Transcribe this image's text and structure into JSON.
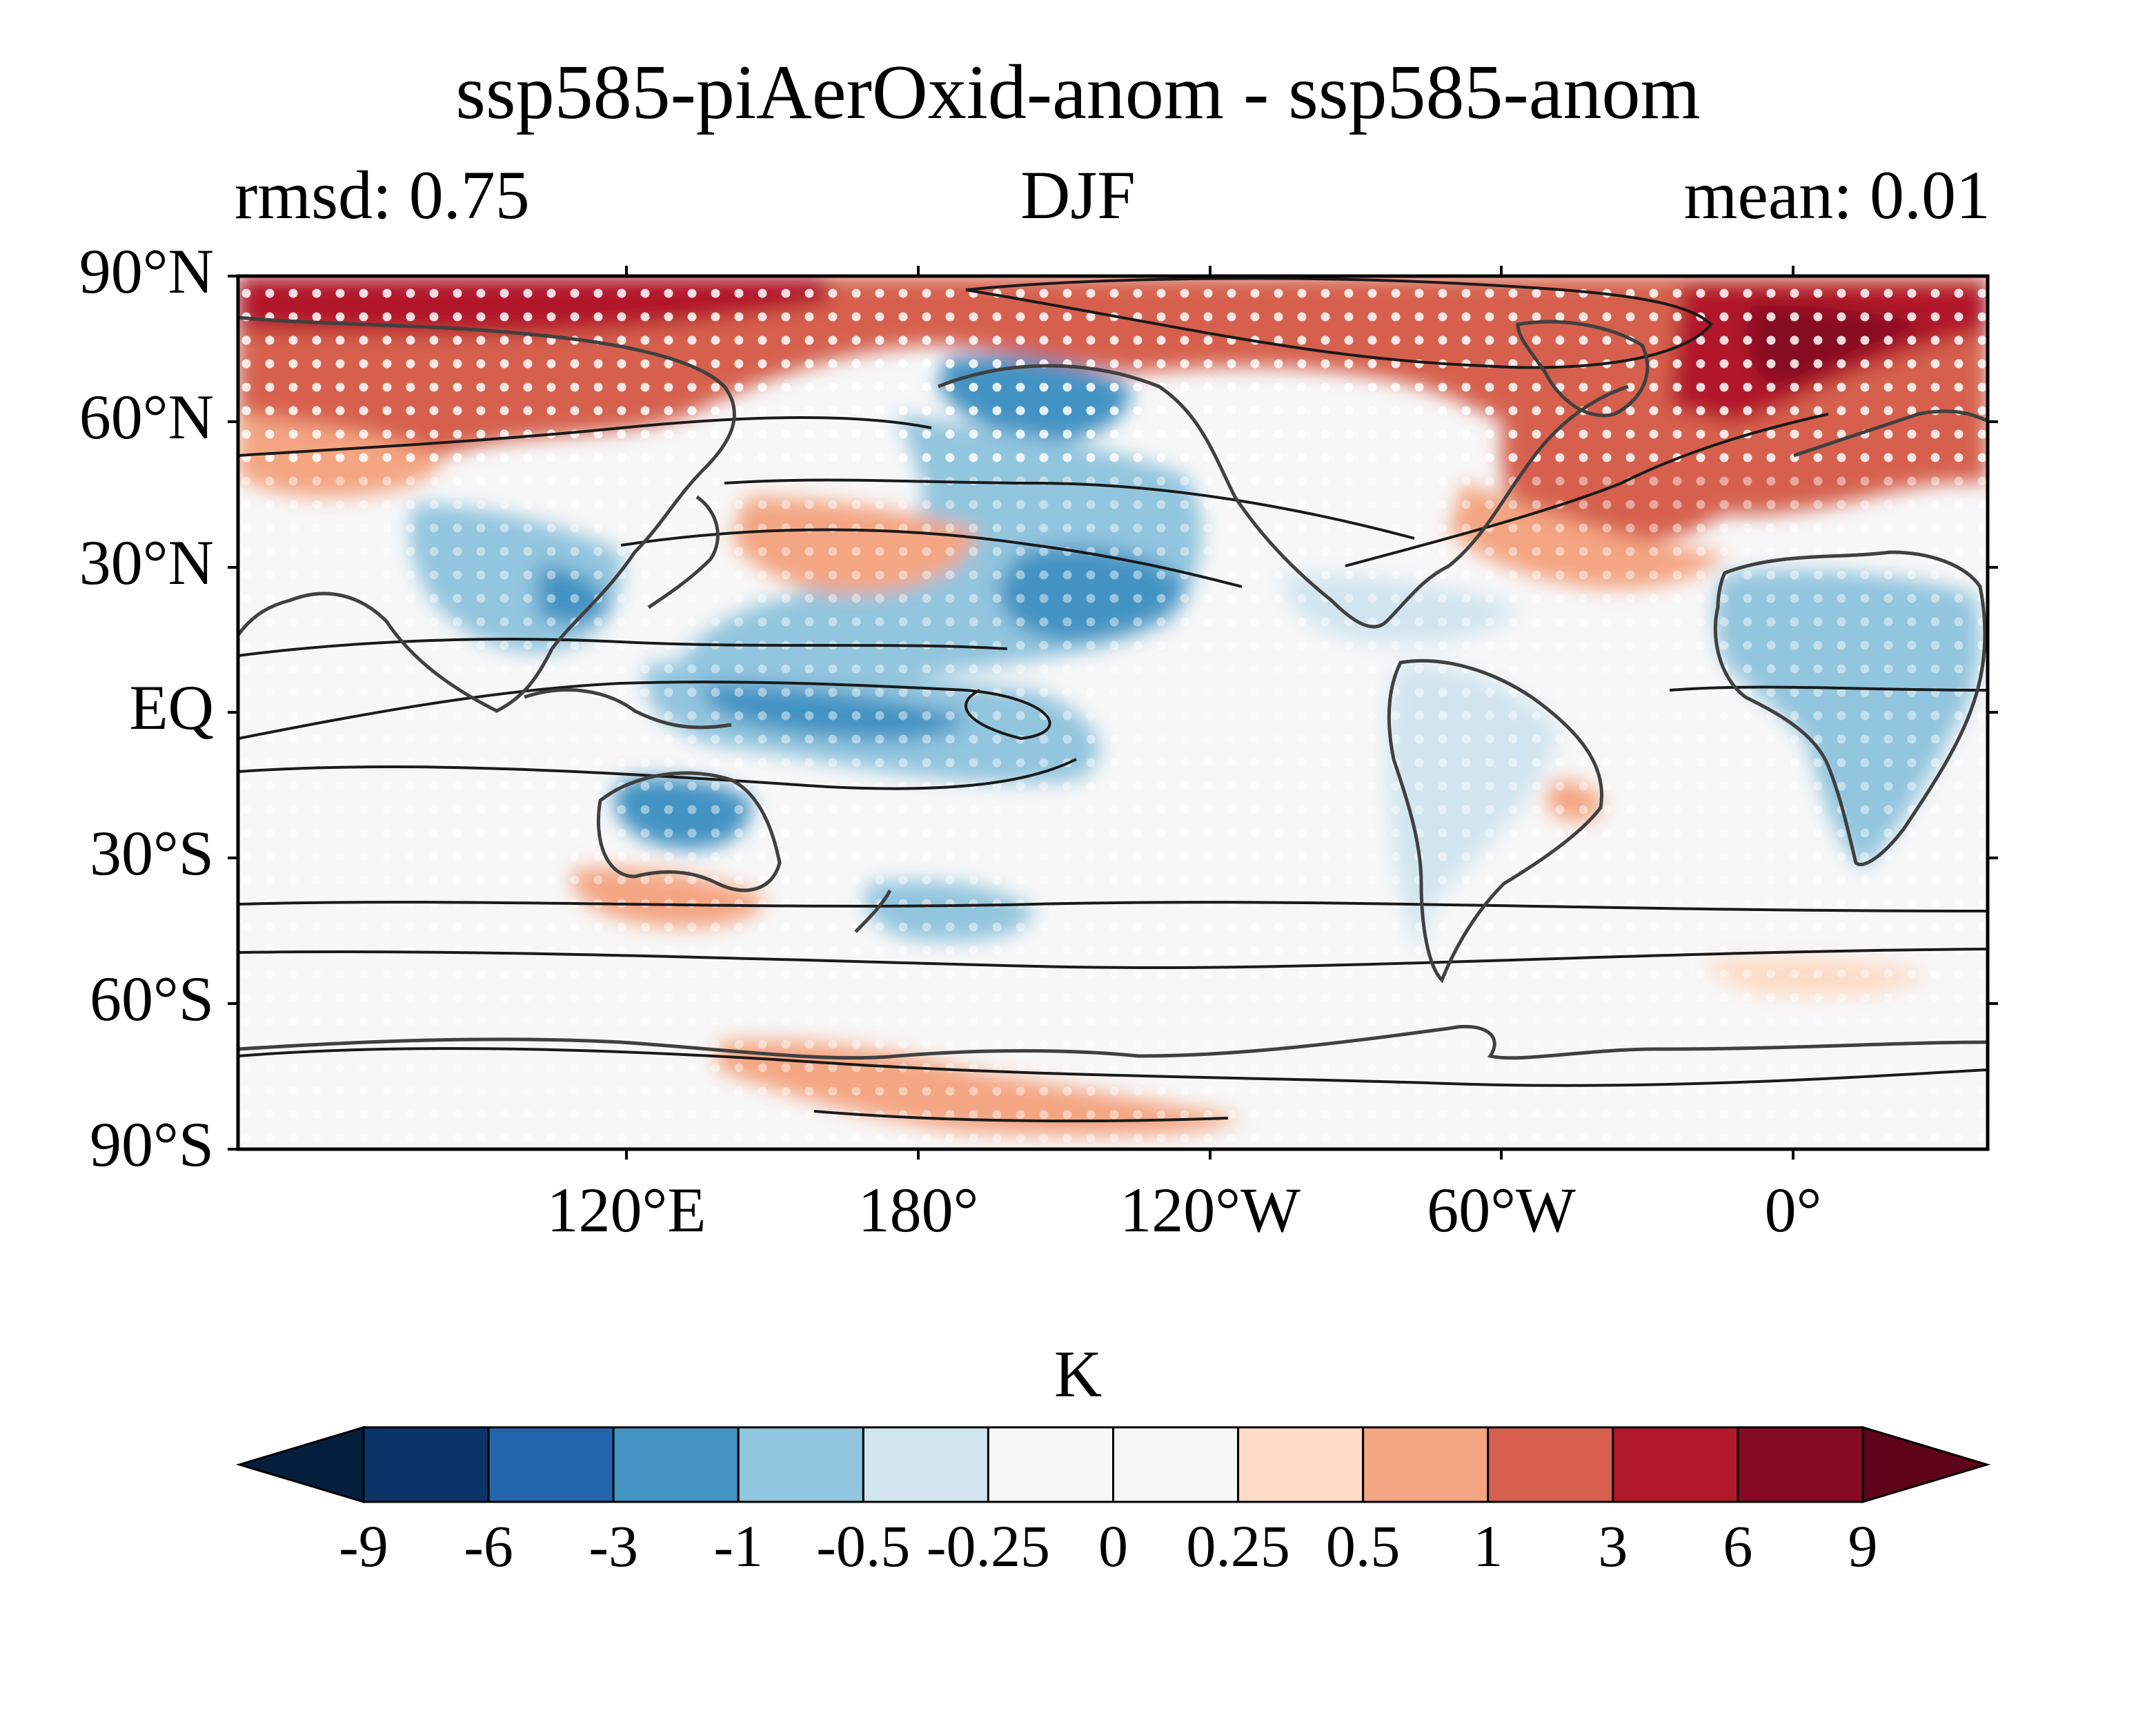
{
  "chart_data": {
    "type": "heatmap",
    "title": "ssp585-piAerOxid-anom - ssp585-anom",
    "subtitle_left": "rmsd: 0.75",
    "subtitle_center": "DJF",
    "subtitle_right": "mean: 0.01",
    "projection": "equirectangular, central longitude 150°E",
    "lon_range": [
      30,
      390
    ],
    "lat_range": [
      -90,
      90
    ],
    "y_ticks": [
      {
        "lat": 90,
        "label": "90°N"
      },
      {
        "lat": 60,
        "label": "60°N"
      },
      {
        "lat": 30,
        "label": "30°N"
      },
      {
        "lat": 0,
        "label": "EQ"
      },
      {
        "lat": -30,
        "label": "30°S"
      },
      {
        "lat": -60,
        "label": "60°S"
      },
      {
        "lat": -90,
        "label": "90°S"
      }
    ],
    "x_ticks": [
      {
        "lon": 120,
        "label": "120°E"
      },
      {
        "lon": 180,
        "label": "180°"
      },
      {
        "lon": 240,
        "label": "120°W"
      },
      {
        "lon": 300,
        "label": "60°W"
      },
      {
        "lon": 360,
        "label": "0°"
      }
    ],
    "colorbar": {
      "unit": "K",
      "levels": [
        "-9",
        "-6",
        "-3",
        "-1",
        "-0.5",
        "-0.25",
        "0",
        "0.25",
        "0.5",
        "1",
        "3",
        "6",
        "9"
      ],
      "colors": [
        "#061e3d",
        "#0d3468",
        "#2166ac",
        "#4393c3",
        "#92c5de",
        "#d1e5f0",
        "#f7f7f7",
        "#f7f7f7",
        "#fddbc7",
        "#f4a582",
        "#d6604d",
        "#b2182b",
        "#870a24",
        "#5e0319"
      ],
      "extend": "both"
    },
    "anomaly_regions": [
      {
        "name": "Arctic / northern Eurasia warming",
        "lon": [
          30,
          390
        ],
        "lat": [
          60,
          90
        ],
        "value": 3
      },
      {
        "name": "Barents-Kara maximum",
        "lon": [
          345,
          390
        ],
        "lat": [
          68,
          85
        ],
        "value": 6
      },
      {
        "name": "North Atlantic warming",
        "lon": [
          305,
          360
        ],
        "lat": [
          35,
          65
        ],
        "value": 3
      },
      {
        "name": "Alaska / NE Pacific cooling",
        "lon": [
          200,
          240
        ],
        "lat": [
          50,
          70
        ],
        "value": -1
      },
      {
        "name": "Central North Pacific cooling",
        "lon": [
          190,
          245
        ],
        "lat": [
          10,
          40
        ],
        "value": -1
      },
      {
        "name": "Tropical Pacific cooling",
        "lon": [
          140,
          250
        ],
        "lat": [
          -10,
          20
        ],
        "value": -0.5
      },
      {
        "name": "East Asia cooling",
        "lon": [
          100,
          130
        ],
        "lat": [
          20,
          40
        ],
        "value": -1
      },
      {
        "name": "Africa cooling",
        "lon": [
          340,
          390
        ],
        "lat": [
          -30,
          25
        ],
        "value": -0.5
      },
      {
        "name": "Northern Australia cooling",
        "lon": [
          120,
          150
        ],
        "lat": [
          -30,
          -15
        ],
        "value": -1
      },
      {
        "name": "Southern Australia warming",
        "lon": [
          125,
          150
        ],
        "lat": [
          -45,
          -35
        ],
        "value": 0.5
      },
      {
        "name": "Antarctic coast warming",
        "lon": [
          150,
          220
        ],
        "lat": [
          -85,
          -70
        ],
        "value": 0.5
      }
    ]
  }
}
